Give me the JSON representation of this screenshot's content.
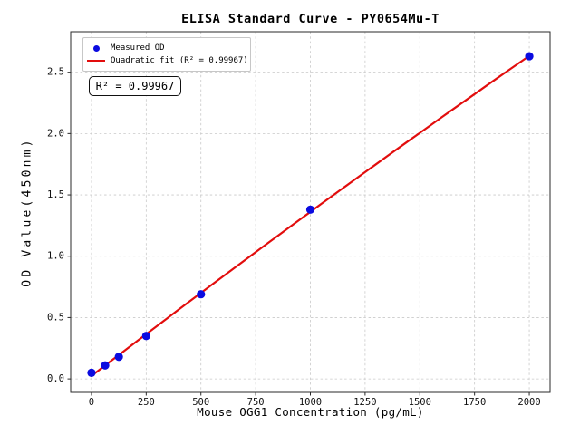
{
  "chart_data": {
    "type": "scatter",
    "title": "ELISA Standard Curve - PY0654Mu-T",
    "xlabel": "Mouse OGG1 Concentration (pg/mL)",
    "ylabel": "OD Value(450nm)",
    "xlim": [
      -95,
      2095
    ],
    "ylim": [
      -0.11,
      2.83
    ],
    "x_ticks": [
      0,
      250,
      500,
      750,
      1000,
      1250,
      1500,
      1750,
      2000
    ],
    "x_tick_labels": [
      "0",
      "250",
      "500",
      "750",
      "1000",
      "1250",
      "1500",
      "1750",
      "2000"
    ],
    "y_ticks": [
      0.0,
      0.5,
      1.0,
      1.5,
      2.0,
      2.5
    ],
    "y_tick_labels": [
      "0.0",
      "0.5",
      "1.0",
      "1.5",
      "2.0",
      "2.5"
    ],
    "grid": true,
    "legend_position": "upper-left",
    "annotation": "R² = 0.99967",
    "r_squared": 0.99967,
    "series": [
      {
        "name": "Measured OD",
        "type": "scatter",
        "marker": "circle",
        "color": "#0b0be0",
        "x": [
          0,
          62.5,
          125,
          250,
          500,
          1000,
          2000
        ],
        "y": [
          0.05,
          0.11,
          0.18,
          0.35,
          0.69,
          1.38,
          2.63
        ]
      },
      {
        "name": "Quadratic fit (R² = 0.99967)",
        "type": "line",
        "fit": "quadratic",
        "color": "#e20d0d",
        "x_range": [
          0,
          2000
        ]
      }
    ]
  }
}
